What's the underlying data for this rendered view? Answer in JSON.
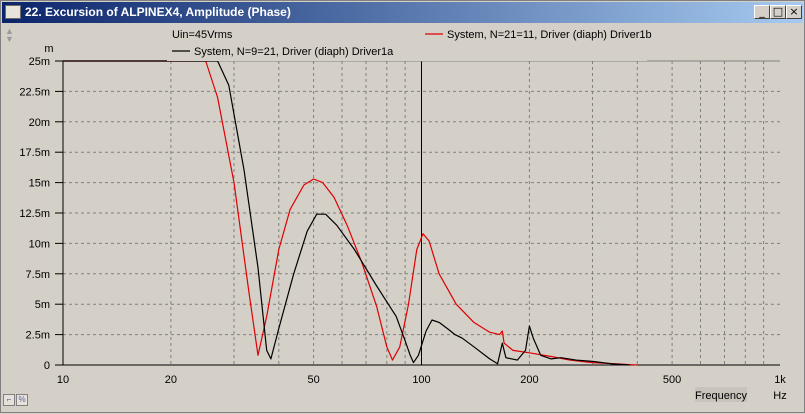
{
  "window": {
    "title": "22. Excursion of ALPINEX4, Amplitude (Phase)",
    "controls": {
      "minimize": "_",
      "maximize": "□",
      "close": "×"
    }
  },
  "colors": {
    "series_red": "#e00000",
    "series_black": "#000000",
    "grid": "#808080",
    "background": "#d4d0c8"
  },
  "chart_data": {
    "type": "line",
    "title": "",
    "xlabel": "Frequency",
    "xunit": "Hz",
    "ylabel": "",
    "yunit": "m",
    "x_scale": "log",
    "xlim": [
      10,
      1000
    ],
    "ylim": [
      0,
      0.025
    ],
    "x_ticks": [
      {
        "value": 10,
        "label": "10"
      },
      {
        "value": 20,
        "label": "20"
      },
      {
        "value": 50,
        "label": "50"
      },
      {
        "value": 100,
        "label": "100"
      },
      {
        "value": 200,
        "label": "200"
      },
      {
        "value": 500,
        "label": "500"
      },
      {
        "value": 1000,
        "label": "1k"
      }
    ],
    "y_ticks": [
      {
        "value": 0,
        "label": "0"
      },
      {
        "value": 0.0025,
        "label": "2.5m"
      },
      {
        "value": 0.005,
        "label": "5m"
      },
      {
        "value": 0.0075,
        "label": "7.5m"
      },
      {
        "value": 0.01,
        "label": "10m"
      },
      {
        "value": 0.0125,
        "label": "12.5m"
      },
      {
        "value": 0.015,
        "label": "15m"
      },
      {
        "value": 0.0175,
        "label": "17.5m"
      },
      {
        "value": 0.02,
        "label": "20m"
      },
      {
        "value": 0.0225,
        "label": "22.5m"
      },
      {
        "value": 0.025,
        "label": "25m"
      }
    ],
    "grid": true,
    "legend_placement": "top",
    "legend_header": "Uin=45Vrms",
    "series": [
      {
        "name": "System, N=21=11, Driver (diaph) Driver1b",
        "color": "#e00000",
        "points": [
          [
            10,
            0.025
          ],
          [
            25,
            0.025
          ],
          [
            27,
            0.022
          ],
          [
            30,
            0.015
          ],
          [
            33,
            0.006
          ],
          [
            35,
            0.0008
          ],
          [
            37,
            0.004
          ],
          [
            40,
            0.0095
          ],
          [
            43,
            0.0128
          ],
          [
            47,
            0.0148
          ],
          [
            50,
            0.0153
          ],
          [
            53,
            0.015
          ],
          [
            57,
            0.0138
          ],
          [
            62,
            0.0115
          ],
          [
            68,
            0.0085
          ],
          [
            75,
            0.0048
          ],
          [
            80,
            0.0015
          ],
          [
            83,
            0.0004
          ],
          [
            87,
            0.0015
          ],
          [
            92,
            0.005
          ],
          [
            97,
            0.0095
          ],
          [
            101,
            0.0108
          ],
          [
            105,
            0.0102
          ],
          [
            112,
            0.0075
          ],
          [
            125,
            0.005
          ],
          [
            140,
            0.0035
          ],
          [
            155,
            0.0027
          ],
          [
            165,
            0.0025
          ],
          [
            168,
            0.0028
          ],
          [
            170,
            0.0018
          ],
          [
            180,
            0.0012
          ],
          [
            200,
            0.001
          ],
          [
            230,
            0.0007
          ],
          [
            260,
            0.0004
          ],
          [
            300,
            0.0002
          ],
          [
            350,
            0.0001
          ],
          [
            400,
            0
          ]
        ]
      },
      {
        "name": "System, N=9=21, Driver (diaph) Driver1a",
        "color": "#000000",
        "points": [
          [
            10,
            0.025
          ],
          [
            27,
            0.025
          ],
          [
            29,
            0.023
          ],
          [
            32,
            0.016
          ],
          [
            35,
            0.008
          ],
          [
            37,
            0.0012
          ],
          [
            38,
            0.0005
          ],
          [
            40,
            0.003
          ],
          [
            44,
            0.0075
          ],
          [
            48,
            0.011
          ],
          [
            51,
            0.0124
          ],
          [
            54,
            0.0124
          ],
          [
            58,
            0.0115
          ],
          [
            65,
            0.0095
          ],
          [
            75,
            0.0065
          ],
          [
            85,
            0.004
          ],
          [
            90,
            0.002
          ],
          [
            93,
            0.0008
          ],
          [
            95,
            0.0002
          ],
          [
            98,
            0.0008
          ],
          [
            103,
            0.0028
          ],
          [
            107,
            0.0037
          ],
          [
            112,
            0.0035
          ],
          [
            118,
            0.003
          ],
          [
            124,
            0.0025
          ],
          [
            130,
            0.0022
          ],
          [
            140,
            0.0015
          ],
          [
            155,
            0.0005
          ],
          [
            163,
            0.0001
          ],
          [
            168,
            0.0018
          ],
          [
            172,
            0.0006
          ],
          [
            185,
            0.0004
          ],
          [
            195,
            0.0012
          ],
          [
            200,
            0.0032
          ],
          [
            205,
            0.0022
          ],
          [
            215,
            0.0008
          ],
          [
            230,
            0.0005
          ],
          [
            245,
            0.0006
          ],
          [
            270,
            0.0004
          ],
          [
            300,
            0.0003
          ],
          [
            340,
            0.0001
          ],
          [
            380,
            0
          ]
        ]
      }
    ]
  }
}
